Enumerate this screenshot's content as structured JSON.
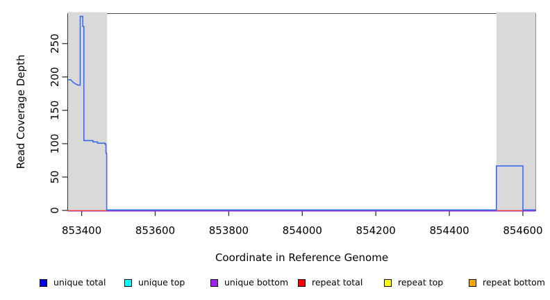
{
  "chart_data": {
    "type": "line",
    "title": "",
    "xlabel": "Coordinate in Reference Genome",
    "ylabel": "Read Coverage Depth",
    "xlim": [
      853362,
      854635
    ],
    "ylim": [
      0,
      295
    ],
    "x_ticks": [
      853400,
      853600,
      853800,
      854000,
      854200,
      854400,
      854600
    ],
    "y_ticks": [
      0,
      50,
      100,
      150,
      200,
      250
    ],
    "grid": false,
    "legend_position": "bottom",
    "highlight_regions": [
      {
        "x0": 853362,
        "x1": 853469,
        "color": "#d9d9d9"
      },
      {
        "x0": 854528,
        "x1": 854635,
        "color": "#d9d9d9"
      }
    ],
    "series": [
      {
        "name": "unique total",
        "color": "#3d6bef",
        "points": [
          [
            853362,
            195
          ],
          [
            853371,
            195
          ],
          [
            853375,
            192
          ],
          [
            853380,
            190
          ],
          [
            853386,
            188
          ],
          [
            853391,
            187
          ],
          [
            853396,
            187
          ],
          [
            853396,
            290
          ],
          [
            853403,
            290
          ],
          [
            853403,
            275
          ],
          [
            853406,
            275
          ],
          [
            853406,
            104
          ],
          [
            853431,
            104
          ],
          [
            853431,
            102
          ],
          [
            853443,
            102
          ],
          [
            853443,
            100
          ],
          [
            853464,
            100
          ],
          [
            853464,
            98
          ],
          [
            853466,
            98
          ],
          [
            853466,
            85
          ],
          [
            853468,
            85
          ],
          [
            853468,
            0
          ],
          [
            854528,
            0
          ],
          [
            854528,
            66
          ],
          [
            854600,
            66
          ],
          [
            854600,
            0
          ],
          [
            854635,
            0
          ]
        ]
      },
      {
        "name": "unique bottom",
        "color": "#a020f0",
        "points": [
          [
            853362,
            0
          ],
          [
            854635,
            0
          ]
        ]
      },
      {
        "name": "repeat total",
        "color": "#ee3b3b",
        "segments": [
          [
            [
              853362,
              0
            ],
            [
              853469,
              0
            ]
          ],
          [
            [
              854528,
              0
            ],
            [
              854600,
              0
            ]
          ]
        ]
      }
    ]
  },
  "legend": {
    "items": [
      {
        "label": "unique total",
        "color": "#0000ee"
      },
      {
        "label": "unique top",
        "color": "#00ffff"
      },
      {
        "label": "unique bottom",
        "color": "#a020f0"
      },
      {
        "label": "repeat total",
        "color": "#ff0000"
      },
      {
        "label": "repeat top",
        "color": "#ffff00"
      },
      {
        "label": "repeat bottom",
        "color": "#ffa500"
      }
    ]
  },
  "colors": {
    "highlight": "#d9d9d9",
    "box_border": "#4a4a4a",
    "tick": "#333333",
    "text": "#000000"
  }
}
